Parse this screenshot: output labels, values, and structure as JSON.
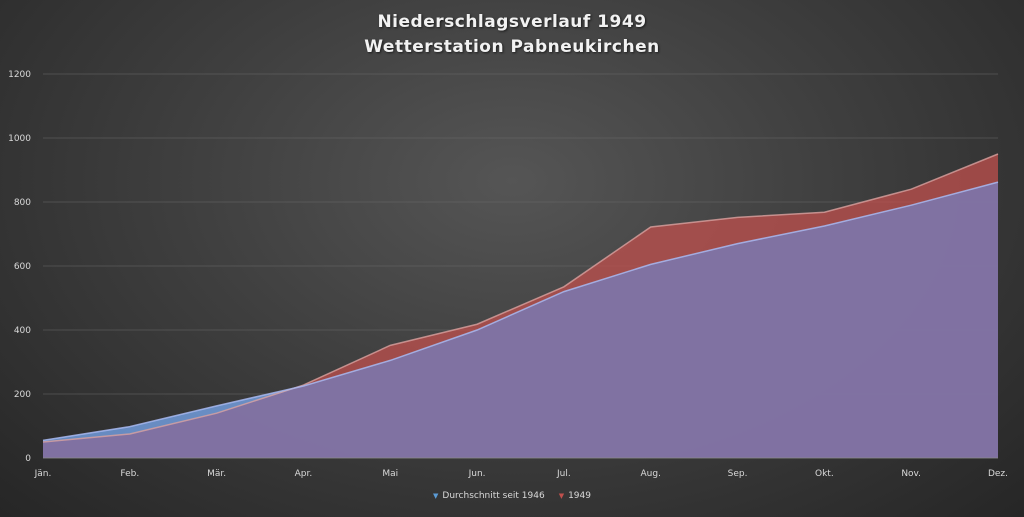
{
  "chart_data": {
    "type": "area",
    "title": "Niederschlagsverlauf 1949",
    "subtitle": "Wetterstation Pabneukirchen",
    "categories": [
      "Jän.",
      "Feb.",
      "Mär.",
      "Apr.",
      "Mai",
      "Jun.",
      "Jul.",
      "Aug.",
      "Sep.",
      "Okt.",
      "Nov.",
      "Dez."
    ],
    "series": [
      {
        "name": "Durchschnitt seit 1946",
        "color": "#7fb2ff",
        "values": [
          55,
          98,
          163,
          225,
          305,
          400,
          520,
          605,
          670,
          725,
          790,
          862
        ]
      },
      {
        "name": "1949",
        "color": "#c0504d",
        "values": [
          50,
          75,
          140,
          228,
          352,
          418,
          535,
          722,
          752,
          768,
          840,
          950
        ]
      }
    ],
    "ylim": [
      0,
      1200
    ],
    "yticks": [
      0,
      200,
      400,
      600,
      800,
      1000,
      1200
    ],
    "grid": true,
    "legend_position": "bottom",
    "overlap_color": "#8070a0",
    "xlabel": "",
    "ylabel": ""
  }
}
